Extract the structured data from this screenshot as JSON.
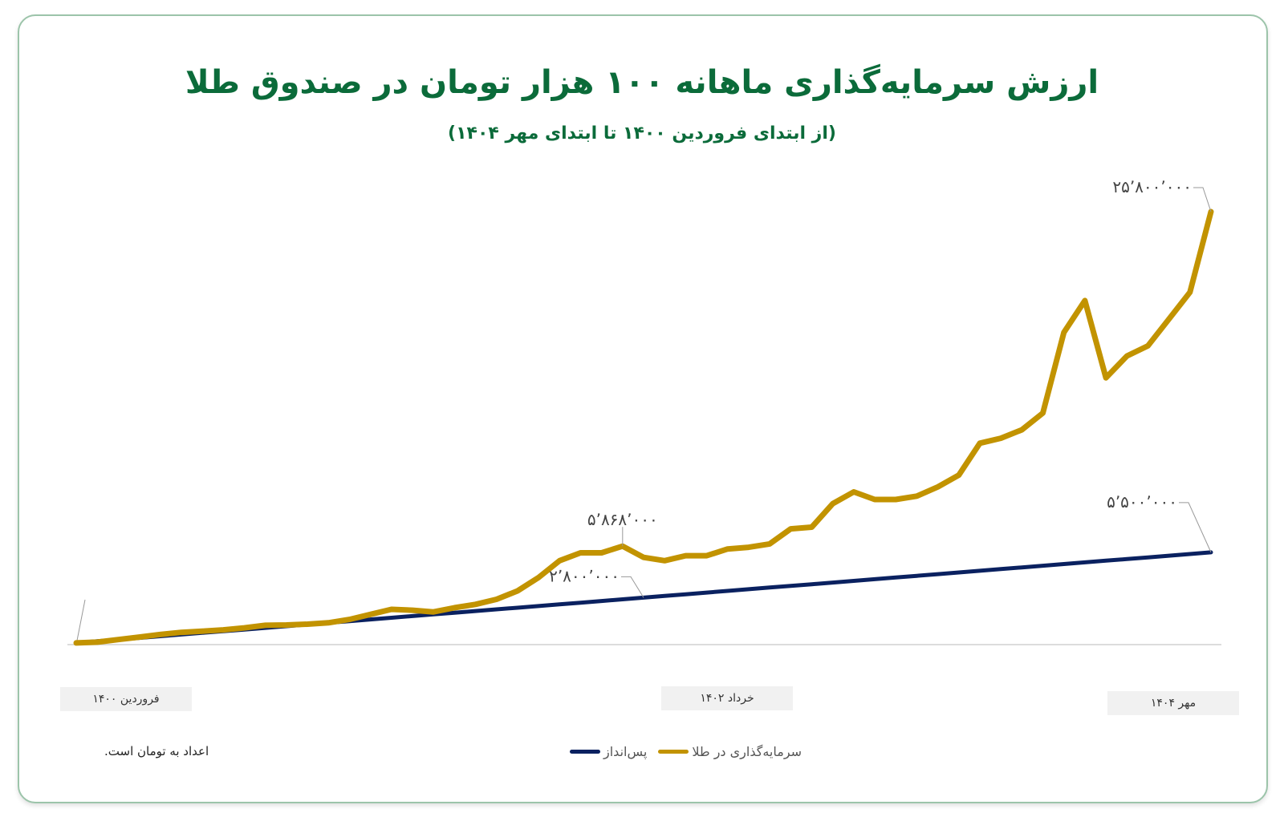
{
  "chart_data": {
    "type": "line",
    "title": "ارزش سرمایه‌گذاری ماهانه ۱۰۰ هزار تومان در صندوق طلا",
    "subtitle": "(از ابتدای فروردین ۱۴۰۰ تا ابتدای مهر ۱۴۰۴)",
    "x_tick_labels": [
      "فروردین ۱۴۰۰",
      "خرداد ۱۴۰۲",
      "مهر ۱۴۰۴"
    ],
    "x_tick_index": [
      0,
      26,
      54
    ],
    "ylim": [
      0,
      25800000
    ],
    "grid": false,
    "legend_position": "bottom",
    "note": "اعداد به تومان است.",
    "series": [
      {
        "name": "سرمایه‌گذاری در طلا",
        "color": "#c29300",
        "values": [
          100000,
          150000,
          300000,
          450000,
          600000,
          730000,
          800000,
          880000,
          1000000,
          1150000,
          1170000,
          1220000,
          1300000,
          1500000,
          1800000,
          2100000,
          2050000,
          1950000,
          2200000,
          2400000,
          2700000,
          3200000,
          4000000,
          5000000,
          5470000,
          5470000,
          5868000,
          5200000,
          5000000,
          5300000,
          5300000,
          5700000,
          5800000,
          6000000,
          6900000,
          7000000,
          8400000,
          9100000,
          8650000,
          8650000,
          8850000,
          9400000,
          10100000,
          12000000,
          12300000,
          12800000,
          13800000,
          18600000,
          20500000,
          15900000,
          17200000,
          17800000,
          19400000,
          21000000,
          25800000
        ]
      },
      {
        "name": "پس‌انداز",
        "color": "#0a2160",
        "values": [
          100000,
          200000,
          300000,
          400000,
          500000,
          600000,
          700000,
          800000,
          900000,
          1000000,
          1100000,
          1200000,
          1300000,
          1400000,
          1500000,
          1600000,
          1700000,
          1800000,
          1900000,
          2000000,
          2100000,
          2200000,
          2300000,
          2400000,
          2500000,
          2600000,
          2700000,
          2800000,
          2900000,
          3000000,
          3100000,
          3200000,
          3300000,
          3400000,
          3500000,
          3600000,
          3700000,
          3800000,
          3900000,
          4000000,
          4100000,
          4200000,
          4300000,
          4400000,
          4500000,
          4600000,
          4700000,
          4800000,
          4900000,
          5000000,
          5100000,
          5200000,
          5300000,
          5400000,
          5500000
        ]
      }
    ],
    "annotations": [
      {
        "series": 0,
        "index": 54,
        "label": "۲۵٬۸۰۰٬۰۰۰"
      },
      {
        "series": 0,
        "index": 26,
        "label": "۵٬۸۶۸٬۰۰۰"
      },
      {
        "series": 1,
        "index": 27,
        "label": "۲٬۸۰۰٬۰۰۰"
      },
      {
        "series": 1,
        "index": 54,
        "label": "۵٬۵۰۰٬۰۰۰"
      }
    ]
  }
}
